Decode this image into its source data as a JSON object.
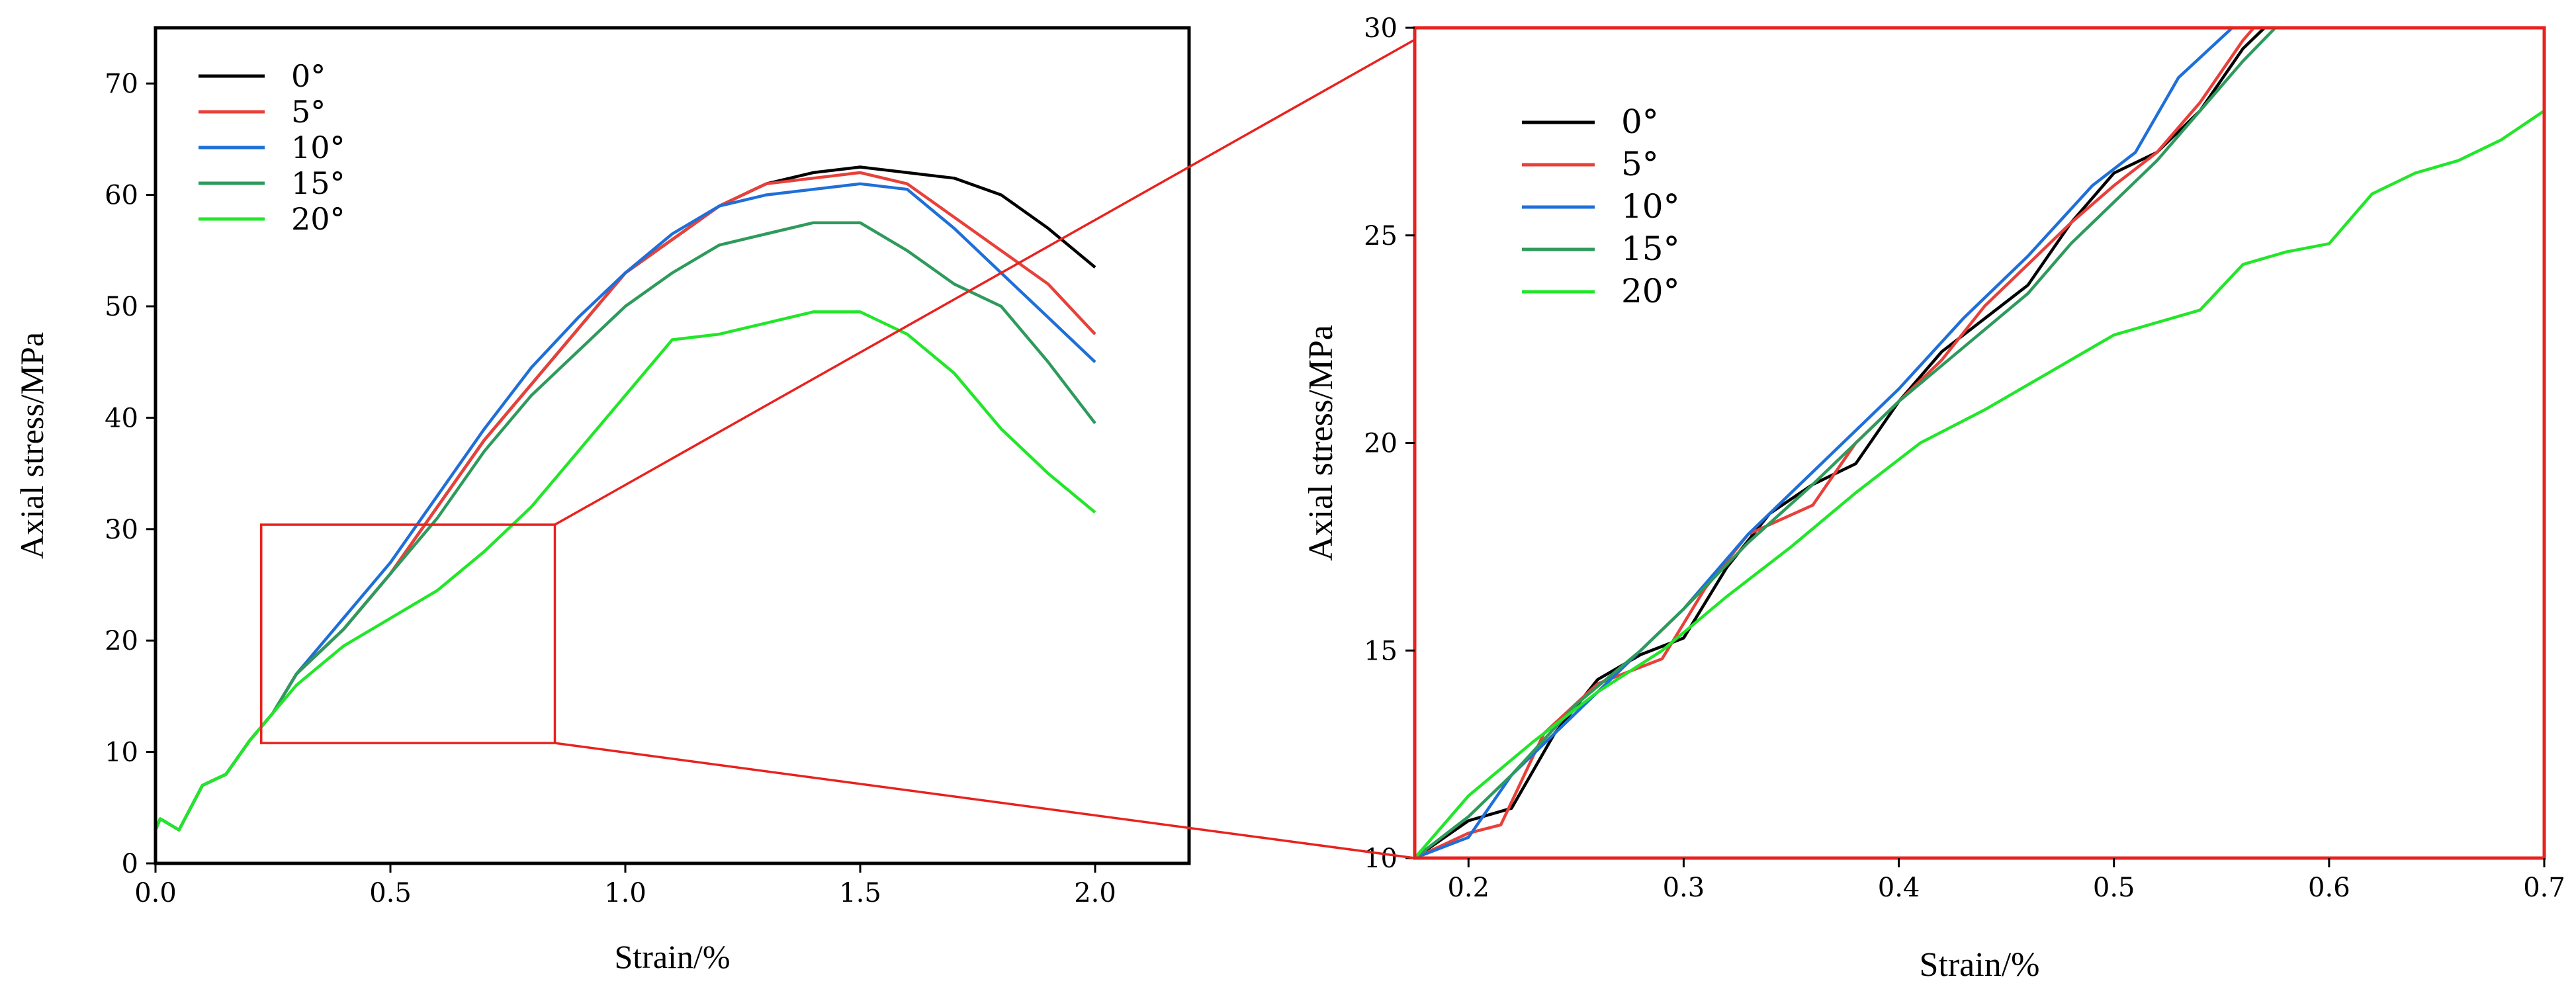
{
  "chart_data": [
    {
      "type": "line",
      "xlabel": "Strain/%",
      "ylabel": "Axial stress/MPa",
      "xlim": [
        0,
        2.2
      ],
      "ylim": [
        0,
        75
      ],
      "xticks": [
        0,
        0.5,
        1.0,
        1.5,
        2.0
      ],
      "xtick_labels": [
        "0.0",
        "0.5",
        "1.0",
        "1.5",
        "2.0"
      ],
      "yticks": [
        0,
        10,
        20,
        30,
        40,
        50,
        60,
        70
      ],
      "ytick_labels": [
        "0",
        "10",
        "20",
        "30",
        "40",
        "50",
        "60",
        "70"
      ],
      "legend_position": "top-left",
      "series": [
        {
          "name": "0°",
          "color": "#000000",
          "points": [
            [
              0,
              3
            ],
            [
              0.01,
              4
            ],
            [
              0.05,
              3
            ],
            [
              0.1,
              7
            ],
            [
              0.15,
              8
            ],
            [
              0.2,
              11
            ],
            [
              0.25,
              13.5
            ],
            [
              0.3,
              17
            ],
            [
              0.4,
              21
            ],
            [
              0.5,
              26
            ],
            [
              0.6,
              32
            ],
            [
              0.7,
              38
            ],
            [
              0.8,
              43
            ],
            [
              0.9,
              48
            ],
            [
              1.0,
              53
            ],
            [
              1.1,
              56
            ],
            [
              1.2,
              59
            ],
            [
              1.3,
              61
            ],
            [
              1.4,
              62
            ],
            [
              1.5,
              62.5
            ],
            [
              1.6,
              62
            ],
            [
              1.7,
              61.5
            ],
            [
              1.8,
              60
            ],
            [
              1.9,
              57
            ],
            [
              2.0,
              53.5
            ]
          ]
        },
        {
          "name": "5°",
          "color": "#e8403a",
          "points": [
            [
              0,
              3
            ],
            [
              0.01,
              4
            ],
            [
              0.05,
              3
            ],
            [
              0.1,
              7
            ],
            [
              0.15,
              8
            ],
            [
              0.2,
              11
            ],
            [
              0.25,
              13.5
            ],
            [
              0.3,
              17
            ],
            [
              0.4,
              21
            ],
            [
              0.5,
              26
            ],
            [
              0.6,
              32
            ],
            [
              0.7,
              38
            ],
            [
              0.8,
              43
            ],
            [
              0.9,
              48
            ],
            [
              1.0,
              53
            ],
            [
              1.1,
              56
            ],
            [
              1.2,
              59
            ],
            [
              1.3,
              61
            ],
            [
              1.4,
              61.5
            ],
            [
              1.5,
              62
            ],
            [
              1.6,
              61
            ],
            [
              1.7,
              58
            ],
            [
              1.8,
              55
            ],
            [
              1.9,
              52
            ],
            [
              2.0,
              47.5
            ]
          ]
        },
        {
          "name": "10°",
          "color": "#1f6fd8",
          "points": [
            [
              0,
              3
            ],
            [
              0.01,
              4
            ],
            [
              0.05,
              3
            ],
            [
              0.1,
              7
            ],
            [
              0.15,
              8
            ],
            [
              0.2,
              11
            ],
            [
              0.25,
              13.5
            ],
            [
              0.3,
              17
            ],
            [
              0.4,
              22
            ],
            [
              0.5,
              27
            ],
            [
              0.6,
              33
            ],
            [
              0.7,
              39
            ],
            [
              0.8,
              44.5
            ],
            [
              0.9,
              49
            ],
            [
              1.0,
              53
            ],
            [
              1.1,
              56.5
            ],
            [
              1.2,
              59
            ],
            [
              1.3,
              60
            ],
            [
              1.4,
              60.5
            ],
            [
              1.5,
              61
            ],
            [
              1.6,
              60.5
            ],
            [
              1.7,
              57
            ],
            [
              1.8,
              53
            ],
            [
              1.9,
              49
            ],
            [
              2.0,
              45
            ]
          ]
        },
        {
          "name": "15°",
          "color": "#2e9a5c",
          "points": [
            [
              0,
              3
            ],
            [
              0.01,
              4
            ],
            [
              0.05,
              3
            ],
            [
              0.1,
              7
            ],
            [
              0.15,
              8
            ],
            [
              0.2,
              11
            ],
            [
              0.25,
              13.5
            ],
            [
              0.3,
              17
            ],
            [
              0.4,
              21
            ],
            [
              0.5,
              26
            ],
            [
              0.6,
              31
            ],
            [
              0.7,
              37
            ],
            [
              0.8,
              42
            ],
            [
              0.9,
              46
            ],
            [
              1.0,
              50
            ],
            [
              1.1,
              53
            ],
            [
              1.2,
              55.5
            ],
            [
              1.3,
              56.5
            ],
            [
              1.4,
              57.5
            ],
            [
              1.5,
              57.5
            ],
            [
              1.6,
              55
            ],
            [
              1.7,
              52
            ],
            [
              1.8,
              50
            ],
            [
              1.9,
              45
            ],
            [
              2.0,
              39.5
            ]
          ]
        },
        {
          "name": "20°",
          "color": "#22e629",
          "points": [
            [
              0,
              3
            ],
            [
              0.01,
              4
            ],
            [
              0.05,
              3
            ],
            [
              0.1,
              7
            ],
            [
              0.15,
              8
            ],
            [
              0.2,
              11
            ],
            [
              0.25,
              13.5
            ],
            [
              0.3,
              16
            ],
            [
              0.4,
              19.5
            ],
            [
              0.5,
              22
            ],
            [
              0.6,
              24.5
            ],
            [
              0.7,
              28
            ],
            [
              0.8,
              32
            ],
            [
              0.9,
              37
            ],
            [
              1.0,
              42
            ],
            [
              1.1,
              47
            ],
            [
              1.2,
              47.5
            ],
            [
              1.3,
              48.5
            ],
            [
              1.4,
              49.5
            ],
            [
              1.5,
              49.5
            ],
            [
              1.6,
              47.5
            ],
            [
              1.7,
              44
            ],
            [
              1.8,
              39
            ],
            [
              1.9,
              35
            ],
            [
              2.0,
              31.5
            ]
          ]
        }
      ]
    },
    {
      "type": "line",
      "xlabel": "Strain/%",
      "ylabel": "Axial stress/MPa",
      "xlim": [
        0.175,
        0.7
      ],
      "ylim": [
        10,
        30
      ],
      "xticks": [
        0.2,
        0.3,
        0.4,
        0.5,
        0.6,
        0.7
      ],
      "xtick_labels": [
        "0.2",
        "0.3",
        "0.4",
        "0.5",
        "0.6",
        "0.7"
      ],
      "yticks": [
        10,
        15,
        20,
        25,
        30
      ],
      "ytick_labels": [
        "10",
        "15",
        "20",
        "25",
        "30"
      ],
      "legend_position": "top-left",
      "series": [
        {
          "name": "0°",
          "color": "#000000",
          "points": [
            [
              0.175,
              10
            ],
            [
              0.2,
              10.9
            ],
            [
              0.22,
              11.2
            ],
            [
              0.24,
              13
            ],
            [
              0.26,
              14.3
            ],
            [
              0.28,
              14.9
            ],
            [
              0.3,
              15.3
            ],
            [
              0.32,
              17
            ],
            [
              0.34,
              18.3
            ],
            [
              0.36,
              19
            ],
            [
              0.38,
              19.5
            ],
            [
              0.4,
              21
            ],
            [
              0.42,
              22.2
            ],
            [
              0.44,
              23
            ],
            [
              0.46,
              23.8
            ],
            [
              0.48,
              25.3
            ],
            [
              0.5,
              26.5
            ],
            [
              0.52,
              27
            ],
            [
              0.54,
              28
            ],
            [
              0.56,
              29.5
            ],
            [
              0.57,
              30
            ]
          ]
        },
        {
          "name": "5°",
          "color": "#e8403a",
          "points": [
            [
              0.175,
              10
            ],
            [
              0.2,
              10.6
            ],
            [
              0.215,
              10.8
            ],
            [
              0.235,
              13
            ],
            [
              0.26,
              14.2
            ],
            [
              0.29,
              14.8
            ],
            [
              0.31,
              16.5
            ],
            [
              0.33,
              17.8
            ],
            [
              0.36,
              18.5
            ],
            [
              0.38,
              20
            ],
            [
              0.4,
              21
            ],
            [
              0.42,
              22
            ],
            [
              0.44,
              23.3
            ],
            [
              0.46,
              24.3
            ],
            [
              0.48,
              25.3
            ],
            [
              0.5,
              26.2
            ],
            [
              0.52,
              27
            ],
            [
              0.54,
              28.2
            ],
            [
              0.56,
              29.7
            ],
            [
              0.565,
              30
            ]
          ]
        },
        {
          "name": "10°",
          "color": "#1f6fd8",
          "points": [
            [
              0.175,
              10
            ],
            [
              0.2,
              10.5
            ],
            [
              0.22,
              12
            ],
            [
              0.24,
              13
            ],
            [
              0.27,
              14.5
            ],
            [
              0.3,
              16
            ],
            [
              0.33,
              17.8
            ],
            [
              0.36,
              19.3
            ],
            [
              0.4,
              21.3
            ],
            [
              0.43,
              23
            ],
            [
              0.46,
              24.5
            ],
            [
              0.49,
              26.2
            ],
            [
              0.51,
              27
            ],
            [
              0.53,
              28.8
            ],
            [
              0.555,
              30
            ]
          ]
        },
        {
          "name": "15°",
          "color": "#2e9a5c",
          "points": [
            [
              0.175,
              10
            ],
            [
              0.2,
              11
            ],
            [
              0.22,
              12
            ],
            [
              0.25,
              13.7
            ],
            [
              0.28,
              15
            ],
            [
              0.3,
              16
            ],
            [
              0.33,
              17.6
            ],
            [
              0.36,
              19
            ],
            [
              0.4,
              21
            ],
            [
              0.43,
              22.3
            ],
            [
              0.46,
              23.6
            ],
            [
              0.48,
              24.8
            ],
            [
              0.5,
              25.8
            ],
            [
              0.52,
              26.8
            ],
            [
              0.54,
              28
            ],
            [
              0.56,
              29.2
            ],
            [
              0.575,
              30
            ]
          ]
        },
        {
          "name": "20°",
          "color": "#22e629",
          "points": [
            [
              0.175,
              10
            ],
            [
              0.2,
              11.5
            ],
            [
              0.23,
              12.8
            ],
            [
              0.26,
              14
            ],
            [
              0.29,
              15
            ],
            [
              0.32,
              16.3
            ],
            [
              0.35,
              17.5
            ],
            [
              0.38,
              18.8
            ],
            [
              0.41,
              20
            ],
            [
              0.44,
              20.8
            ],
            [
              0.47,
              21.7
            ],
            [
              0.5,
              22.6
            ],
            [
              0.52,
              22.9
            ],
            [
              0.54,
              23.2
            ],
            [
              0.56,
              24.3
            ],
            [
              0.58,
              24.6
            ],
            [
              0.6,
              24.8
            ],
            [
              0.62,
              26
            ],
            [
              0.64,
              26.5
            ],
            [
              0.66,
              26.8
            ],
            [
              0.68,
              27.3
            ],
            [
              0.7,
              28
            ]
          ]
        }
      ]
    }
  ],
  "zoom": {
    "x_range": [
      0.225,
      0.85
    ],
    "y_range": [
      10.8,
      30.4
    ],
    "color": "#e8221e"
  }
}
